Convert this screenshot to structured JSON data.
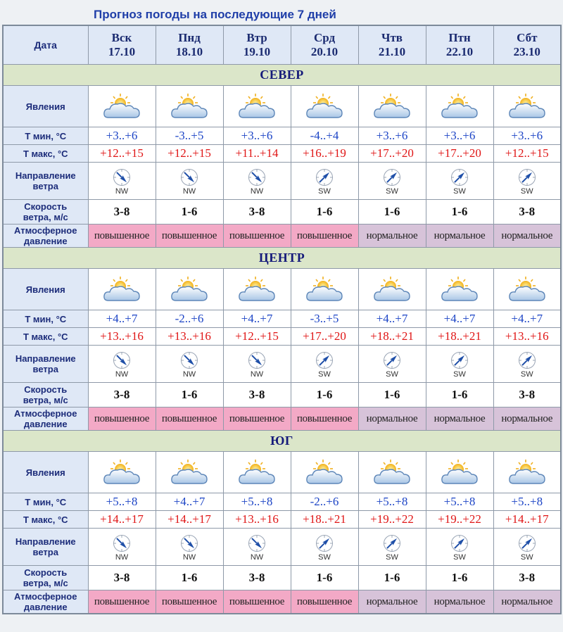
{
  "title": "Прогноз погоды на последующие 7 дней",
  "header_label": "Дата",
  "days": [
    {
      "name": "Вск",
      "date": "17.10"
    },
    {
      "name": "Пнд",
      "date": "18.10"
    },
    {
      "name": "Втр",
      "date": "19.10"
    },
    {
      "name": "Срд",
      "date": "20.10"
    },
    {
      "name": "Чтв",
      "date": "21.10"
    },
    {
      "name": "Птн",
      "date": "22.10"
    },
    {
      "name": "Сбт",
      "date": "23.10"
    }
  ],
  "row_labels": {
    "phenomena": "Явления",
    "tmin": "Т мин, °С",
    "tmax": "Т макс, °С",
    "wind_dir_1": "Направление",
    "wind_dir_2": "ветра",
    "wind_speed_1": "Скорость",
    "wind_speed_2": "ветра, м/с",
    "pressure_1": "Атмосферное",
    "pressure_2": "давление"
  },
  "colors": {
    "tmin": "#1c44c6",
    "tmax": "#e01616",
    "pressure_high": "#f3a9c6",
    "pressure_normal": "#d7c3d9",
    "region_band": "#dbe6c9"
  },
  "icons": {
    "phenomena": "partly-cloudy-icon",
    "wind": "compass-arrow-icon"
  },
  "regions": [
    {
      "name": "СЕВЕР",
      "tmin": [
        "+3..+6",
        "-3..+5",
        "+3..+6",
        "-4..+4",
        "+3..+6",
        "+3..+6",
        "+3..+6"
      ],
      "tmax": [
        "+12..+15",
        "+12..+15",
        "+11..+14",
        "+16..+19",
        "+17..+20",
        "+17..+20",
        "+12..+15"
      ],
      "wind_dir": [
        "NW",
        "NW",
        "NW",
        "SW",
        "SW",
        "SW",
        "SW"
      ],
      "wind_speed": [
        "3-8",
        "1-6",
        "3-8",
        "1-6",
        "1-6",
        "1-6",
        "3-8"
      ],
      "pressure": [
        "повышенное",
        "повышенное",
        "повышенное",
        "повышенное",
        "нормальное",
        "нормальное",
        "нормальное"
      ]
    },
    {
      "name": "ЦЕНТР",
      "tmin": [
        "+4..+7",
        "-2..+6",
        "+4..+7",
        "-3..+5",
        "+4..+7",
        "+4..+7",
        "+4..+7"
      ],
      "tmax": [
        "+13..+16",
        "+13..+16",
        "+12..+15",
        "+17..+20",
        "+18..+21",
        "+18..+21",
        "+13..+16"
      ],
      "wind_dir": [
        "NW",
        "NW",
        "NW",
        "SW",
        "SW",
        "SW",
        "SW"
      ],
      "wind_speed": [
        "3-8",
        "1-6",
        "3-8",
        "1-6",
        "1-6",
        "1-6",
        "3-8"
      ],
      "pressure": [
        "повышенное",
        "повышенное",
        "повышенное",
        "повышенное",
        "нормальное",
        "нормальное",
        "нормальное"
      ]
    },
    {
      "name": "ЮГ",
      "tmin": [
        "+5..+8",
        "+4..+7",
        "+5..+8",
        "-2..+6",
        "+5..+8",
        "+5..+8",
        "+5..+8"
      ],
      "tmax": [
        "+14..+17",
        "+14..+17",
        "+13..+16",
        "+18..+21",
        "+19..+22",
        "+19..+22",
        "+14..+17"
      ],
      "wind_dir": [
        "NW",
        "NW",
        "NW",
        "SW",
        "SW",
        "SW",
        "SW"
      ],
      "wind_speed": [
        "3-8",
        "1-6",
        "3-8",
        "1-6",
        "1-6",
        "1-6",
        "3-8"
      ],
      "pressure": [
        "повышенное",
        "повышенное",
        "повышенное",
        "повышенное",
        "нормальное",
        "нормальное",
        "нормальное"
      ]
    }
  ]
}
